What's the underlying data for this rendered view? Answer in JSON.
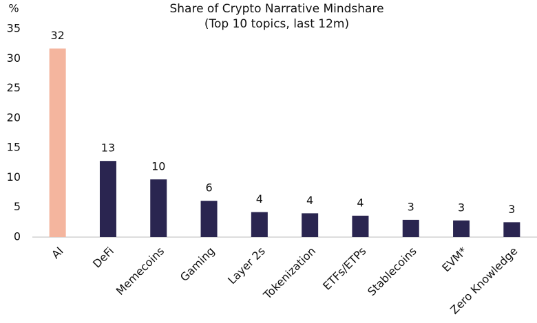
{
  "chart_data": {
    "type": "bar",
    "title": "Share of Crypto Narrative Mindshare",
    "subtitle": "(Top 10 topics, last 12m)",
    "y_label": "%",
    "categories": [
      "AI",
      "DeFi",
      "Memecoins",
      "Gaming",
      "Layer 2s",
      "Tokenization",
      "ETFs/ETPs",
      "Stablecoins",
      "EVM*",
      "Zero Knowledge"
    ],
    "values": [
      31.7,
      12.8,
      9.7,
      6.1,
      4.2,
      4.0,
      3.6,
      2.9,
      2.8,
      2.5
    ],
    "value_labels": [
      "32",
      "13",
      "10",
      "6",
      "4",
      "4",
      "4",
      "3",
      "3",
      "3"
    ],
    "colors": [
      "#f4b59e",
      "#2a2550",
      "#2a2550",
      "#2a2550",
      "#2a2550",
      "#2a2550",
      "#2a2550",
      "#2a2550",
      "#2a2550",
      "#2a2550"
    ],
    "ylim": [
      0,
      35
    ],
    "yticks": [
      0,
      5,
      10,
      15,
      20,
      25,
      30,
      35
    ],
    "grid": false
  }
}
